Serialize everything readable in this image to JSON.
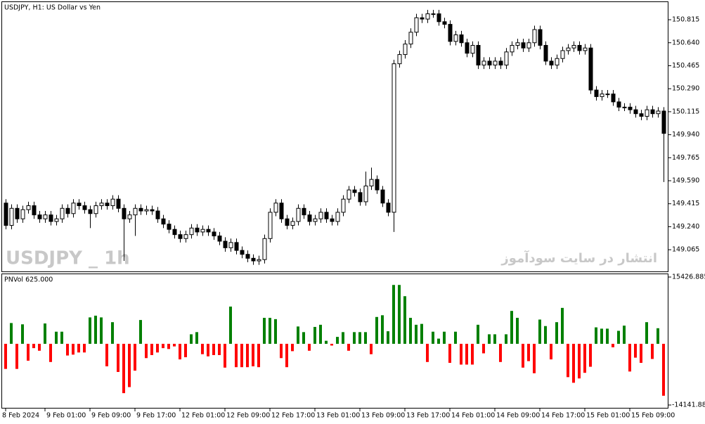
{
  "chart_data": [
    {
      "type": "candlestick",
      "title": "USDJPY, H1:  US Dollar vs Yen",
      "watermark": "USDJPY _ 1h",
      "annotation": "انتشار در سایت سودآموز",
      "categories": [
        "8 Feb 2024",
        null,
        null,
        null,
        null,
        null,
        null,
        "9 Feb 01:00",
        null,
        null,
        null,
        null,
        null,
        null,
        null,
        "9 Feb 09:00",
        null,
        null,
        null,
        null,
        null,
        null,
        null,
        "9 Feb 17:00",
        null,
        null,
        null,
        null,
        null,
        null,
        null,
        "12 Feb 01:00",
        null,
        null,
        null,
        null,
        null,
        null,
        null,
        "12 Feb 09:00",
        null,
        null,
        null,
        null,
        null,
        null,
        null,
        "12 Feb 17:00",
        null,
        null,
        null,
        null,
        null,
        null,
        null,
        "13 Feb 01:00",
        null,
        null,
        null,
        null,
        null,
        null,
        null,
        "13 Feb 09:00",
        null,
        null,
        null,
        null,
        null,
        null,
        null,
        "13 Feb 17:00",
        null,
        null,
        null,
        null,
        null,
        null,
        null,
        "14 Feb 01:00",
        null,
        null,
        null,
        null,
        null,
        null,
        null,
        "14 Feb 09:00",
        null,
        null,
        null,
        null,
        null,
        null,
        null,
        "14 Feb 17:00",
        null,
        null,
        null,
        null,
        null,
        null,
        null,
        "15 Feb 01:00",
        null,
        null,
        null,
        null,
        null,
        null,
        null,
        "15 Feb 09:00",
        null,
        null,
        null,
        null,
        null,
        null
      ],
      "open": [
        149.42,
        149.25,
        149.38,
        149.3,
        149.37,
        149.4,
        149.33,
        149.3,
        149.33,
        149.28,
        149.3,
        149.38,
        149.34,
        149.42,
        149.4,
        149.37,
        149.34,
        149.4,
        149.42,
        149.4,
        149.45,
        149.38,
        149.3,
        149.33,
        149.38,
        149.36,
        149.37,
        149.36,
        149.3,
        149.26,
        149.22,
        149.18,
        149.15,
        149.18,
        149.23,
        149.2,
        149.22,
        149.2,
        149.17,
        149.13,
        149.08,
        149.12,
        149.06,
        149.03,
        149.0,
        148.98,
        148.99,
        149.15,
        149.35,
        149.42,
        149.3,
        149.25,
        149.28,
        149.38,
        149.33,
        149.28,
        149.3,
        149.35,
        149.3,
        149.28,
        149.35,
        149.45,
        149.52,
        149.5,
        149.43,
        149.55,
        149.6,
        149.52,
        149.42,
        149.35,
        150.48,
        150.55,
        150.63,
        150.72,
        150.83,
        150.82,
        150.86,
        150.86,
        150.8,
        150.78,
        150.65,
        150.7,
        150.64,
        150.56,
        150.62,
        150.47,
        150.5,
        150.47,
        150.5,
        150.47,
        150.57,
        150.62,
        150.64,
        150.6,
        150.64,
        150.74,
        150.62,
        150.5,
        150.47,
        150.52,
        150.58,
        150.6,
        150.62,
        150.58,
        150.6,
        150.28,
        150.23,
        150.25,
        150.25,
        150.19,
        150.15,
        150.15,
        150.13,
        150.1,
        150.08,
        150.13,
        150.1,
        150.12
      ],
      "high": [
        149.45,
        149.41,
        149.41,
        149.4,
        149.43,
        149.43,
        149.36,
        149.36,
        149.36,
        149.33,
        149.41,
        149.41,
        149.45,
        149.45,
        149.43,
        149.4,
        149.43,
        149.45,
        149.45,
        149.48,
        149.48,
        149.41,
        149.36,
        149.41,
        149.41,
        149.4,
        149.4,
        149.39,
        149.33,
        149.29,
        149.25,
        149.21,
        149.21,
        149.26,
        149.26,
        149.25,
        149.25,
        149.23,
        149.2,
        149.16,
        149.15,
        149.15,
        149.09,
        149.06,
        149.03,
        149.02,
        149.18,
        149.38,
        149.45,
        149.45,
        149.33,
        149.31,
        149.41,
        149.41,
        149.36,
        149.33,
        149.38,
        149.38,
        149.33,
        149.38,
        149.48,
        149.55,
        149.55,
        149.53,
        149.66,
        149.69,
        149.63,
        149.55,
        149.45,
        150.51,
        150.58,
        150.66,
        150.75,
        150.86,
        150.86,
        150.89,
        150.89,
        150.89,
        150.83,
        150.81,
        150.73,
        150.73,
        150.67,
        150.65,
        150.65,
        150.53,
        150.53,
        150.53,
        150.53,
        150.6,
        150.65,
        150.67,
        150.67,
        150.67,
        150.77,
        150.77,
        150.65,
        150.53,
        150.55,
        150.61,
        150.63,
        150.65,
        150.65,
        150.63,
        150.63,
        150.31,
        150.28,
        150.28,
        150.28,
        150.22,
        150.18,
        150.18,
        150.16,
        150.13,
        150.16,
        150.16,
        150.15,
        150.15
      ],
      "low": [
        149.22,
        149.22,
        149.27,
        149.27,
        149.34,
        149.3,
        149.27,
        149.27,
        149.25,
        149.25,
        149.27,
        149.31,
        149.31,
        149.37,
        149.34,
        149.23,
        149.31,
        149.37,
        149.37,
        149.37,
        149.35,
        148.98,
        149.27,
        149.17,
        149.33,
        149.33,
        149.33,
        149.27,
        149.23,
        149.19,
        149.15,
        149.12,
        149.12,
        149.15,
        149.17,
        149.17,
        149.17,
        149.14,
        149.1,
        149.05,
        149.05,
        149.03,
        149.0,
        148.97,
        148.95,
        148.95,
        148.96,
        149.12,
        149.32,
        149.27,
        149.22,
        149.22,
        149.25,
        149.3,
        149.25,
        149.25,
        149.27,
        149.27,
        149.25,
        149.25,
        149.32,
        149.42,
        149.47,
        149.4,
        149.4,
        149.52,
        149.49,
        149.39,
        149.32,
        149.2,
        150.45,
        150.52,
        150.6,
        150.69,
        150.79,
        150.79,
        150.83,
        150.77,
        150.75,
        150.62,
        150.62,
        150.61,
        150.53,
        150.53,
        150.44,
        150.44,
        150.44,
        150.44,
        150.44,
        150.44,
        150.54,
        150.59,
        150.57,
        150.57,
        150.61,
        150.59,
        150.47,
        150.44,
        150.44,
        150.49,
        150.55,
        150.57,
        150.55,
        150.55,
        150.25,
        150.2,
        150.2,
        150.22,
        150.16,
        150.12,
        150.12,
        150.1,
        150.07,
        150.05,
        150.05,
        150.07,
        150.07,
        149.58
      ],
      "close": [
        149.25,
        149.38,
        149.3,
        149.37,
        149.4,
        149.33,
        149.3,
        149.33,
        149.28,
        149.3,
        149.38,
        149.34,
        149.42,
        149.4,
        149.37,
        149.34,
        149.4,
        149.42,
        149.4,
        149.45,
        149.38,
        149.3,
        149.33,
        149.38,
        149.36,
        149.37,
        149.36,
        149.3,
        149.26,
        149.22,
        149.18,
        149.15,
        149.18,
        149.23,
        149.2,
        149.22,
        149.2,
        149.17,
        149.13,
        149.08,
        149.12,
        149.06,
        149.03,
        149.0,
        148.98,
        148.99,
        149.15,
        149.35,
        149.42,
        149.3,
        149.25,
        149.28,
        149.38,
        149.33,
        149.28,
        149.3,
        149.35,
        149.3,
        149.28,
        149.35,
        149.45,
        149.52,
        149.5,
        149.43,
        149.55,
        149.6,
        149.52,
        149.42,
        149.35,
        150.48,
        150.55,
        150.63,
        150.72,
        150.83,
        150.82,
        150.86,
        150.86,
        150.8,
        150.78,
        150.65,
        150.7,
        150.64,
        150.56,
        150.62,
        150.47,
        150.5,
        150.47,
        150.5,
        150.47,
        150.57,
        150.62,
        150.64,
        150.6,
        150.64,
        150.74,
        150.62,
        150.5,
        150.47,
        150.52,
        150.58,
        150.6,
        150.62,
        150.58,
        150.6,
        150.28,
        150.23,
        150.25,
        150.25,
        150.19,
        150.15,
        150.15,
        150.13,
        150.1,
        150.08,
        150.13,
        150.1,
        150.12,
        149.95
      ],
      "up_color": "#ffffff",
      "down_color": "#000000",
      "ylim": [
        148.9,
        150.949
      ],
      "yticks": [
        150.815,
        {
          "value": 150.64,
          "label": "150.640"
        },
        150.465,
        {
          "value": 150.29,
          "label": "150.290"
        },
        150.115,
        {
          "value": 149.94,
          "label": "149.940"
        },
        149.765,
        {
          "value": 149.59,
          "label": "149.590"
        },
        149.415,
        {
          "value": 149.24,
          "label": "149.240"
        },
        149.065
      ]
    },
    {
      "type": "bar",
      "title": "PNVol 625.000",
      "values": [
        -5800,
        4800,
        -5800,
        4500,
        -3900,
        -1000,
        -1600,
        4700,
        -4200,
        2800,
        2800,
        -2700,
        -2500,
        -2000,
        -2000,
        6100,
        6500,
        6100,
        -5200,
        5000,
        -6500,
        -11400,
        -10000,
        -6200,
        5500,
        -3300,
        -2600,
        -2000,
        -1000,
        -1200,
        -600,
        -3600,
        -3100,
        2200,
        2700,
        -2400,
        -2900,
        -2600,
        -2600,
        -5500,
        8600,
        -5400,
        -5400,
        -5400,
        -5200,
        -5400,
        6000,
        6000,
        5700,
        -3300,
        -5400,
        -1700,
        4000,
        2700,
        -1600,
        3900,
        4400,
        700,
        -400,
        1600,
        2700,
        -1600,
        2700,
        2700,
        2700,
        -2400,
        6200,
        6600,
        2900,
        13600,
        13600,
        11000,
        6000,
        4400,
        4600,
        -4200,
        2800,
        1200,
        2800,
        -4400,
        2800,
        -4800,
        -4800,
        -4800,
        4400,
        -2200,
        2200,
        2200,
        -4200,
        2200,
        7600,
        6000,
        -5500,
        -4000,
        -6800,
        5600,
        4100,
        -3600,
        5000,
        8300,
        -7700,
        -9000,
        -8000,
        -6700,
        -5300,
        3800,
        3500,
        3500,
        -800,
        3000,
        4200,
        -6400,
        -3200,
        -4400,
        5000,
        -3500,
        3600,
        -12000
      ],
      "positive_color": "#008000",
      "negative_color": "#ff0000",
      "ylim": [
        -14141.885,
        15426.885
      ],
      "yticks": [
        15426.885,
        -14141.885
      ]
    }
  ]
}
